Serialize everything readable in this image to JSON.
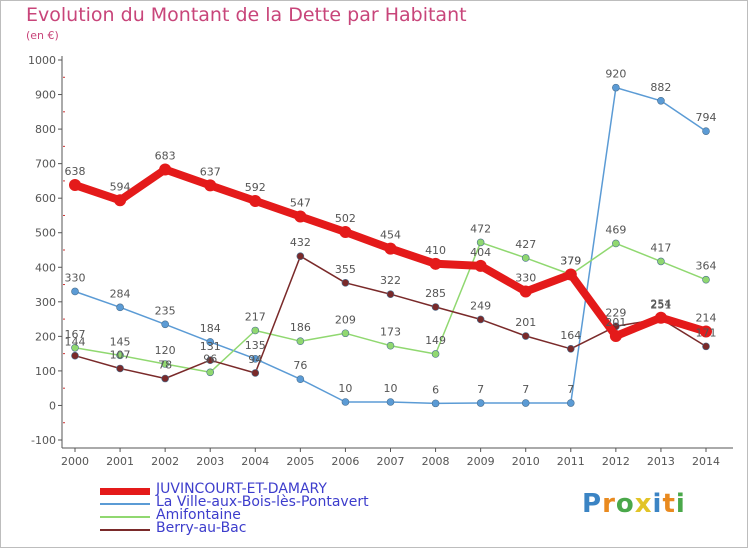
{
  "title": "Evolution du Montant de la Dette par Habitant",
  "subtitle": "(en €)",
  "logo_text": "Proxiti",
  "colors": {
    "title": "#c8457a",
    "axis": "#555555",
    "grid_tick": "#cc3333",
    "label": "#555555",
    "legend_text": "#3d3dcc"
  },
  "chart_data": {
    "type": "line",
    "title": "Evolution du Montant de la Dette par Habitant",
    "ylabel": "(en €)",
    "xlabel": "",
    "x": [
      "2000",
      "2001",
      "2002",
      "2003",
      "2004",
      "2005",
      "2006",
      "2007",
      "2008",
      "2009",
      "2010",
      "2011",
      "2012",
      "2013",
      "2014"
    ],
    "ylim": [
      -100,
      1000
    ],
    "yticks": [
      -100,
      0,
      100,
      200,
      300,
      400,
      500,
      600,
      700,
      800,
      900,
      1000
    ],
    "grid": false,
    "legend": "bottom-left",
    "series": [
      {
        "name": "JUVINCOURT-ET-DAMARY",
        "color": "#e41a1a",
        "bold": true,
        "values": [
          638,
          594,
          683,
          637,
          592,
          547,
          502,
          454,
          410,
          404,
          330,
          379,
          201,
          254,
          214
        ]
      },
      {
        "name": "La Ville-aux-Bois-lès-Pontavert",
        "color": "#5b9bd5",
        "bold": false,
        "values": [
          330,
          284,
          235,
          184,
          135,
          76,
          10,
          10,
          6,
          7,
          7,
          7,
          920,
          882,
          794
        ]
      },
      {
        "name": "Amifontaine",
        "color": "#90d870",
        "bold": false,
        "values": [
          167,
          145,
          120,
          96,
          217,
          186,
          209,
          173,
          149,
          472,
          427,
          379,
          469,
          417,
          364
        ]
      },
      {
        "name": "Berry-au-Bac",
        "color": "#7a2a2a",
        "bold": false,
        "values": [
          144,
          107,
          78,
          131,
          94,
          432,
          355,
          322,
          285,
          249,
          201,
          164,
          229,
          251,
          171
        ]
      }
    ]
  }
}
